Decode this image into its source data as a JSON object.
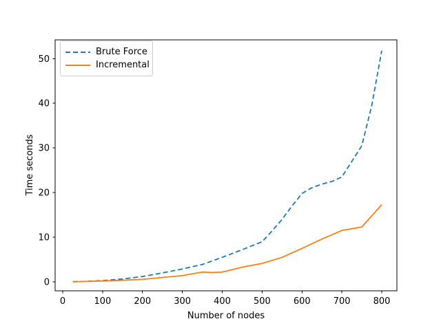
{
  "chart_data": {
    "type": "line",
    "title": "",
    "xlabel": "Number of nodes",
    "ylabel": "Time seconds",
    "xticks": [
      0,
      100,
      200,
      300,
      400,
      500,
      600,
      700,
      800
    ],
    "yticks": [
      0,
      10,
      20,
      30,
      40,
      50
    ],
    "xlim": [
      -19,
      838
    ],
    "ylim": [
      -2,
      54.2
    ],
    "grid": false,
    "legend_position": "upper left",
    "background_color": "#ffffff",
    "spine_color": "#000000",
    "series": [
      {
        "name": "Brute Force",
        "color": "#1f77b4",
        "style": "dashed",
        "x": [
          25,
          50,
          100,
          150,
          200,
          250,
          300,
          350,
          400,
          450,
          500,
          525,
          550,
          575,
          600,
          625,
          650,
          675,
          700,
          725,
          750,
          775,
          800
        ],
        "y": [
          0.05,
          0.1,
          0.3,
          0.65,
          1.2,
          2.0,
          2.9,
          3.9,
          5.5,
          7.2,
          9.0,
          11.4,
          14.0,
          17.0,
          19.8,
          21.1,
          21.9,
          22.5,
          23.5,
          27.0,
          30.5,
          39.5,
          51.8
        ]
      },
      {
        "name": "Incremental",
        "color": "#ff7f0e",
        "style": "solid",
        "x": [
          25,
          50,
          100,
          150,
          200,
          250,
          300,
          350,
          375,
          400,
          450,
          500,
          550,
          600,
          650,
          700,
          750,
          800
        ],
        "y": [
          0.03,
          0.08,
          0.2,
          0.35,
          0.55,
          1.0,
          1.4,
          2.2,
          2.1,
          2.2,
          3.3,
          4.15,
          5.5,
          7.5,
          9.6,
          11.5,
          12.3,
          17.3
        ]
      }
    ]
  }
}
